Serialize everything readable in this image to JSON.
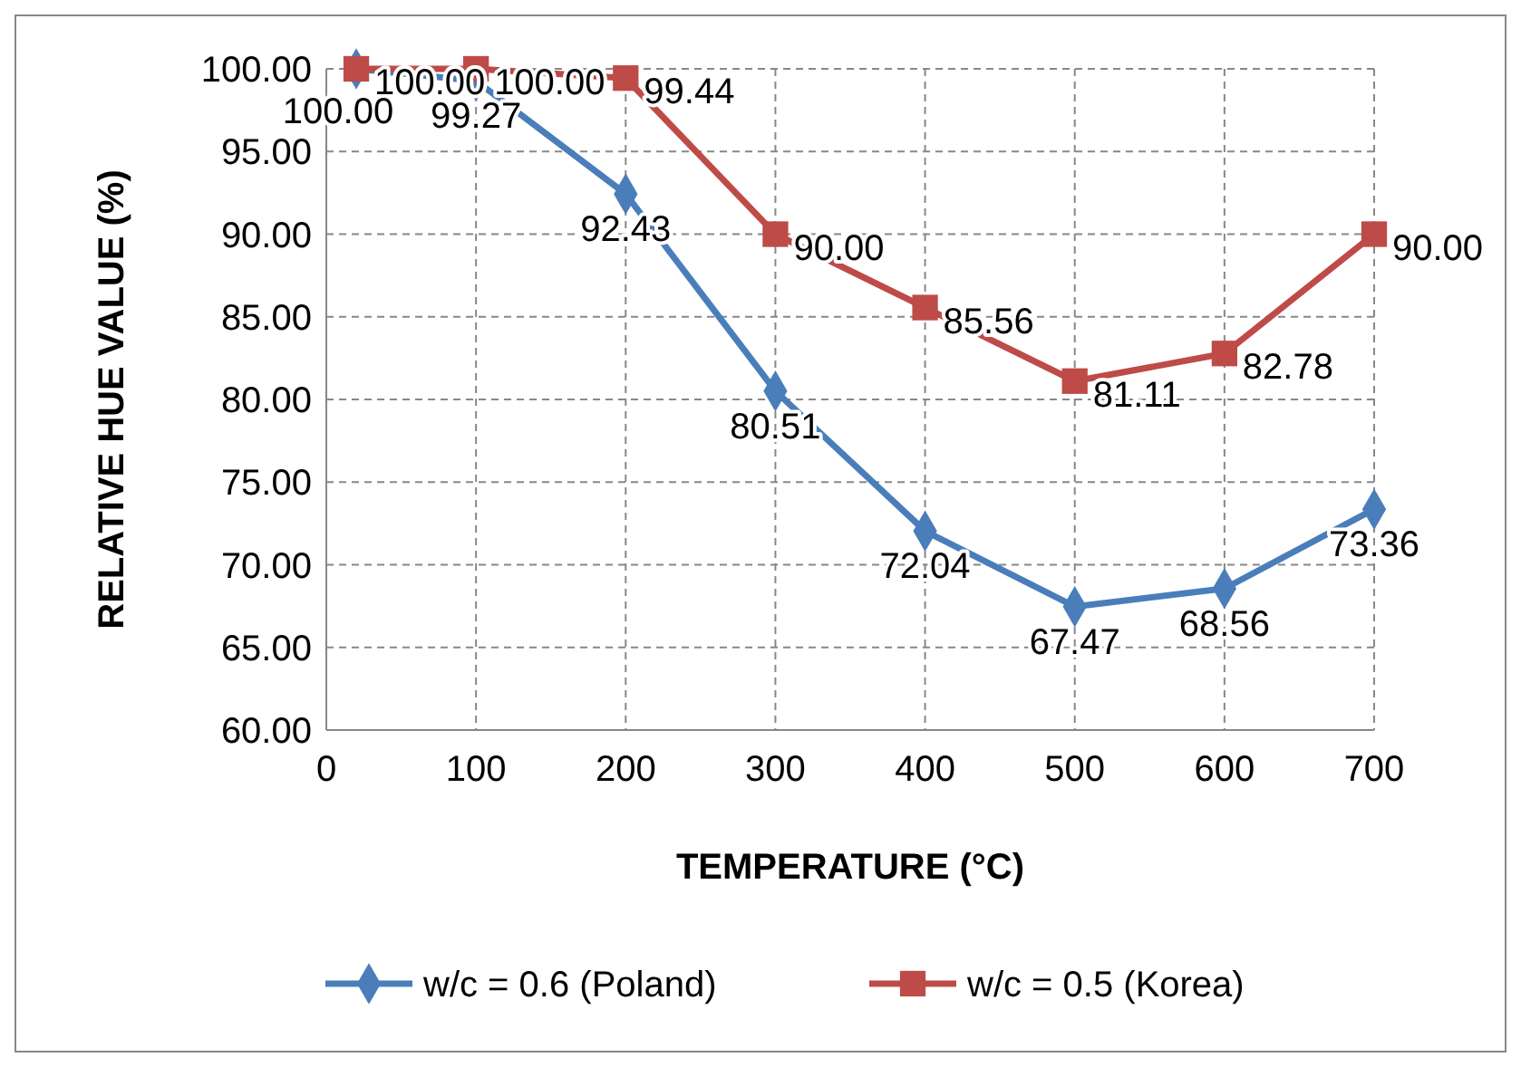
{
  "chart_data": {
    "type": "line",
    "xlabel": "TEMPERATURE (°C)",
    "ylabel": "RELATIVE HUE VALUE (%)",
    "x": [
      20,
      100,
      200,
      300,
      400,
      500,
      600,
      700
    ],
    "series": [
      {
        "name": "w/c = 0.6 (Poland)",
        "color": "#4a7ebb",
        "marker": "diamond",
        "values": [
          100.0,
          99.27,
          92.43,
          80.51,
          72.04,
          67.47,
          68.56,
          73.36
        ],
        "value_labels": [
          "100.00",
          "99.27",
          "92.43",
          "80.51",
          "72.04",
          "67.47",
          "68.56",
          "73.36"
        ]
      },
      {
        "name": "w/c = 0.5 (Korea)",
        "color": "#be4b48",
        "marker": "square",
        "values": [
          100.0,
          100.0,
          99.44,
          90.0,
          85.56,
          81.11,
          82.78,
          90.0
        ],
        "value_labels": [
          "100.00",
          "100.00",
          "99.44",
          "90.00",
          "85.56",
          "81.11",
          "82.78",
          "90.00"
        ]
      }
    ],
    "xlim": [
      0,
      700
    ],
    "xticks": [
      0,
      100,
      200,
      300,
      400,
      500,
      600,
      700
    ],
    "ylim": [
      60,
      100
    ],
    "yticks": [
      {
        "value": 60,
        "label": "60.00"
      },
      {
        "value": 65,
        "label": "65.00"
      },
      {
        "value": 70,
        "label": "70.00"
      },
      {
        "value": 75,
        "label": "75.00"
      },
      {
        "value": 80,
        "label": "80.00"
      },
      {
        "value": 85,
        "label": "85.00"
      },
      {
        "value": 90,
        "label": "90.00"
      },
      {
        "value": 95,
        "label": "95.00"
      },
      {
        "value": 100,
        "label": "100.00"
      }
    ],
    "grid": true,
    "legend": "bottom",
    "line_style": "solid"
  }
}
